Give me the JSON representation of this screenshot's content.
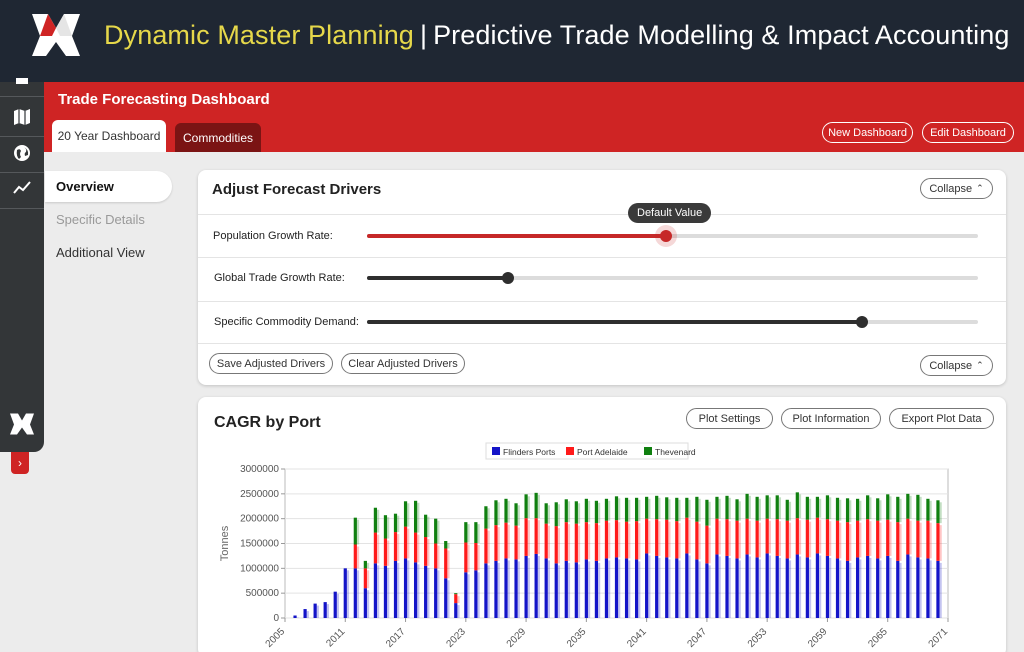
{
  "header": {
    "brand": "Dynamic Master Planning",
    "separator": "|",
    "subtitle": "Predictive Trade Modelling & Impact Accounting"
  },
  "dashboard": {
    "title": "Trade Forecasting Dashboard",
    "tabs": [
      {
        "label": "20 Year Dashboard",
        "active": true
      },
      {
        "label": "Commodities",
        "active": false
      }
    ],
    "new_dashboard_label": "New Dashboard",
    "edit_dashboard_label": "Edit Dashboard"
  },
  "rail": {
    "icons": [
      "document-icon",
      "map-icon",
      "globe-icon",
      "trend-icon"
    ],
    "toggle_icon": "chevron-right-icon"
  },
  "nav": {
    "items": [
      {
        "label": "Overview",
        "active": true
      },
      {
        "label": "Specific Details",
        "active": false
      },
      {
        "label": "Additional View",
        "active": false
      }
    ]
  },
  "drivers": {
    "title": "Adjust Forecast Drivers",
    "collapse_label": "Collapse",
    "sliders": [
      {
        "label": "Population Growth Rate:",
        "value": 0.49,
        "color": "#c62828"
      },
      {
        "label": "Global Trade Growth Rate:",
        "value": 0.23,
        "color": "#2e2e2e"
      },
      {
        "label": "Specific Commodity Demand:",
        "value": 0.81,
        "color": "#2e2e2e"
      }
    ],
    "tooltip": "Default Value",
    "save_label": "Save Adjusted Drivers",
    "clear_label": "Clear Adjusted Drivers",
    "collapse_bottom_label": "Collapse"
  },
  "chart_panel": {
    "title": "CAGR by Port",
    "plot_settings_label": "Plot Settings",
    "plot_information_label": "Plot Information",
    "export_label": "Export Plot Data"
  },
  "chart_data": {
    "type": "bar",
    "stacked": true,
    "ylabel": "Tonnes",
    "xlabel": "",
    "ylim": [
      0,
      3000000
    ],
    "yticks": [
      "0",
      "500000",
      "1000000",
      "1500000",
      "2000000",
      "2500000",
      "3000000"
    ],
    "xticks": [
      "2005",
      "2011",
      "2017",
      "2023",
      "2029",
      "2035",
      "2041",
      "2047",
      "2053",
      "2059",
      "2065",
      "2071"
    ],
    "legend_position": "top-center",
    "x": [
      2006,
      2007,
      2008,
      2009,
      2010,
      2011,
      2012,
      2013,
      2014,
      2015,
      2016,
      2017,
      2018,
      2019,
      2020,
      2021,
      2022,
      2023,
      2024,
      2025,
      2026,
      2027,
      2028,
      2029,
      2030,
      2031,
      2032,
      2033,
      2034,
      2035,
      2036,
      2037,
      2038,
      2039,
      2040,
      2041,
      2042,
      2043,
      2044,
      2045,
      2046,
      2047,
      2048,
      2049,
      2050,
      2051,
      2052,
      2053,
      2054,
      2055,
      2056,
      2057,
      2058,
      2059,
      2060,
      2061,
      2062,
      2063,
      2064,
      2065,
      2066,
      2067,
      2068,
      2069,
      2070
    ],
    "series": [
      {
        "name": "Flinders Ports",
        "color": "#1414c8",
        "values": [
          50000,
          180000,
          290000,
          320000,
          530000,
          1000000,
          1000000,
          600000,
          1100000,
          1050000,
          1150000,
          1200000,
          1120000,
          1050000,
          1000000,
          800000,
          300000,
          920000,
          960000,
          1100000,
          1150000,
          1200000,
          1180000,
          1250000,
          1290000,
          1200000,
          1100000,
          1150000,
          1120000,
          1180000,
          1150000,
          1200000,
          1220000,
          1200000,
          1180000,
          1300000,
          1250000,
          1220000,
          1200000,
          1300000,
          1180000,
          1100000,
          1280000,
          1250000,
          1200000,
          1280000,
          1220000,
          1300000,
          1250000,
          1200000,
          1280000,
          1220000,
          1300000,
          1250000,
          1200000,
          1150000,
          1220000,
          1250000,
          1200000,
          1250000,
          1150000,
          1280000,
          1220000,
          1200000,
          1150000
        ]
      },
      {
        "name": "Port Adelaide",
        "color": "#ff1a1a",
        "values": [
          0,
          0,
          0,
          0,
          0,
          0,
          480000,
          400000,
          620000,
          550000,
          580000,
          640000,
          600000,
          580000,
          500000,
          600000,
          180000,
          600000,
          550000,
          700000,
          720000,
          720000,
          680000,
          760000,
          720000,
          700000,
          750000,
          780000,
          780000,
          750000,
          760000,
          760000,
          750000,
          740000,
          770000,
          700000,
          740000,
          760000,
          750000,
          720000,
          760000,
          760000,
          720000,
          740000,
          760000,
          720000,
          740000,
          700000,
          740000,
          760000,
          730000,
          760000,
          720000,
          740000,
          760000,
          780000,
          740000,
          740000,
          760000,
          730000,
          780000,
          720000,
          740000,
          760000,
          760000
        ]
      },
      {
        "name": "Thevenard",
        "color": "#108010",
        "values": [
          0,
          0,
          0,
          0,
          0,
          0,
          540000,
          150000,
          500000,
          470000,
          370000,
          510000,
          640000,
          450000,
          500000,
          150000,
          20000,
          410000,
          420000,
          450000,
          500000,
          480000,
          450000,
          480000,
          510000,
          410000,
          480000,
          460000,
          450000,
          470000,
          450000,
          440000,
          480000,
          480000,
          470000,
          440000,
          470000,
          450000,
          470000,
          400000,
          500000,
          520000,
          440000,
          470000,
          430000,
          500000,
          480000,
          470000,
          480000,
          420000,
          520000,
          460000,
          420000,
          480000,
          460000,
          480000,
          440000,
          480000,
          450000,
          510000,
          510000,
          500000,
          520000,
          440000,
          460000
        ]
      }
    ]
  }
}
